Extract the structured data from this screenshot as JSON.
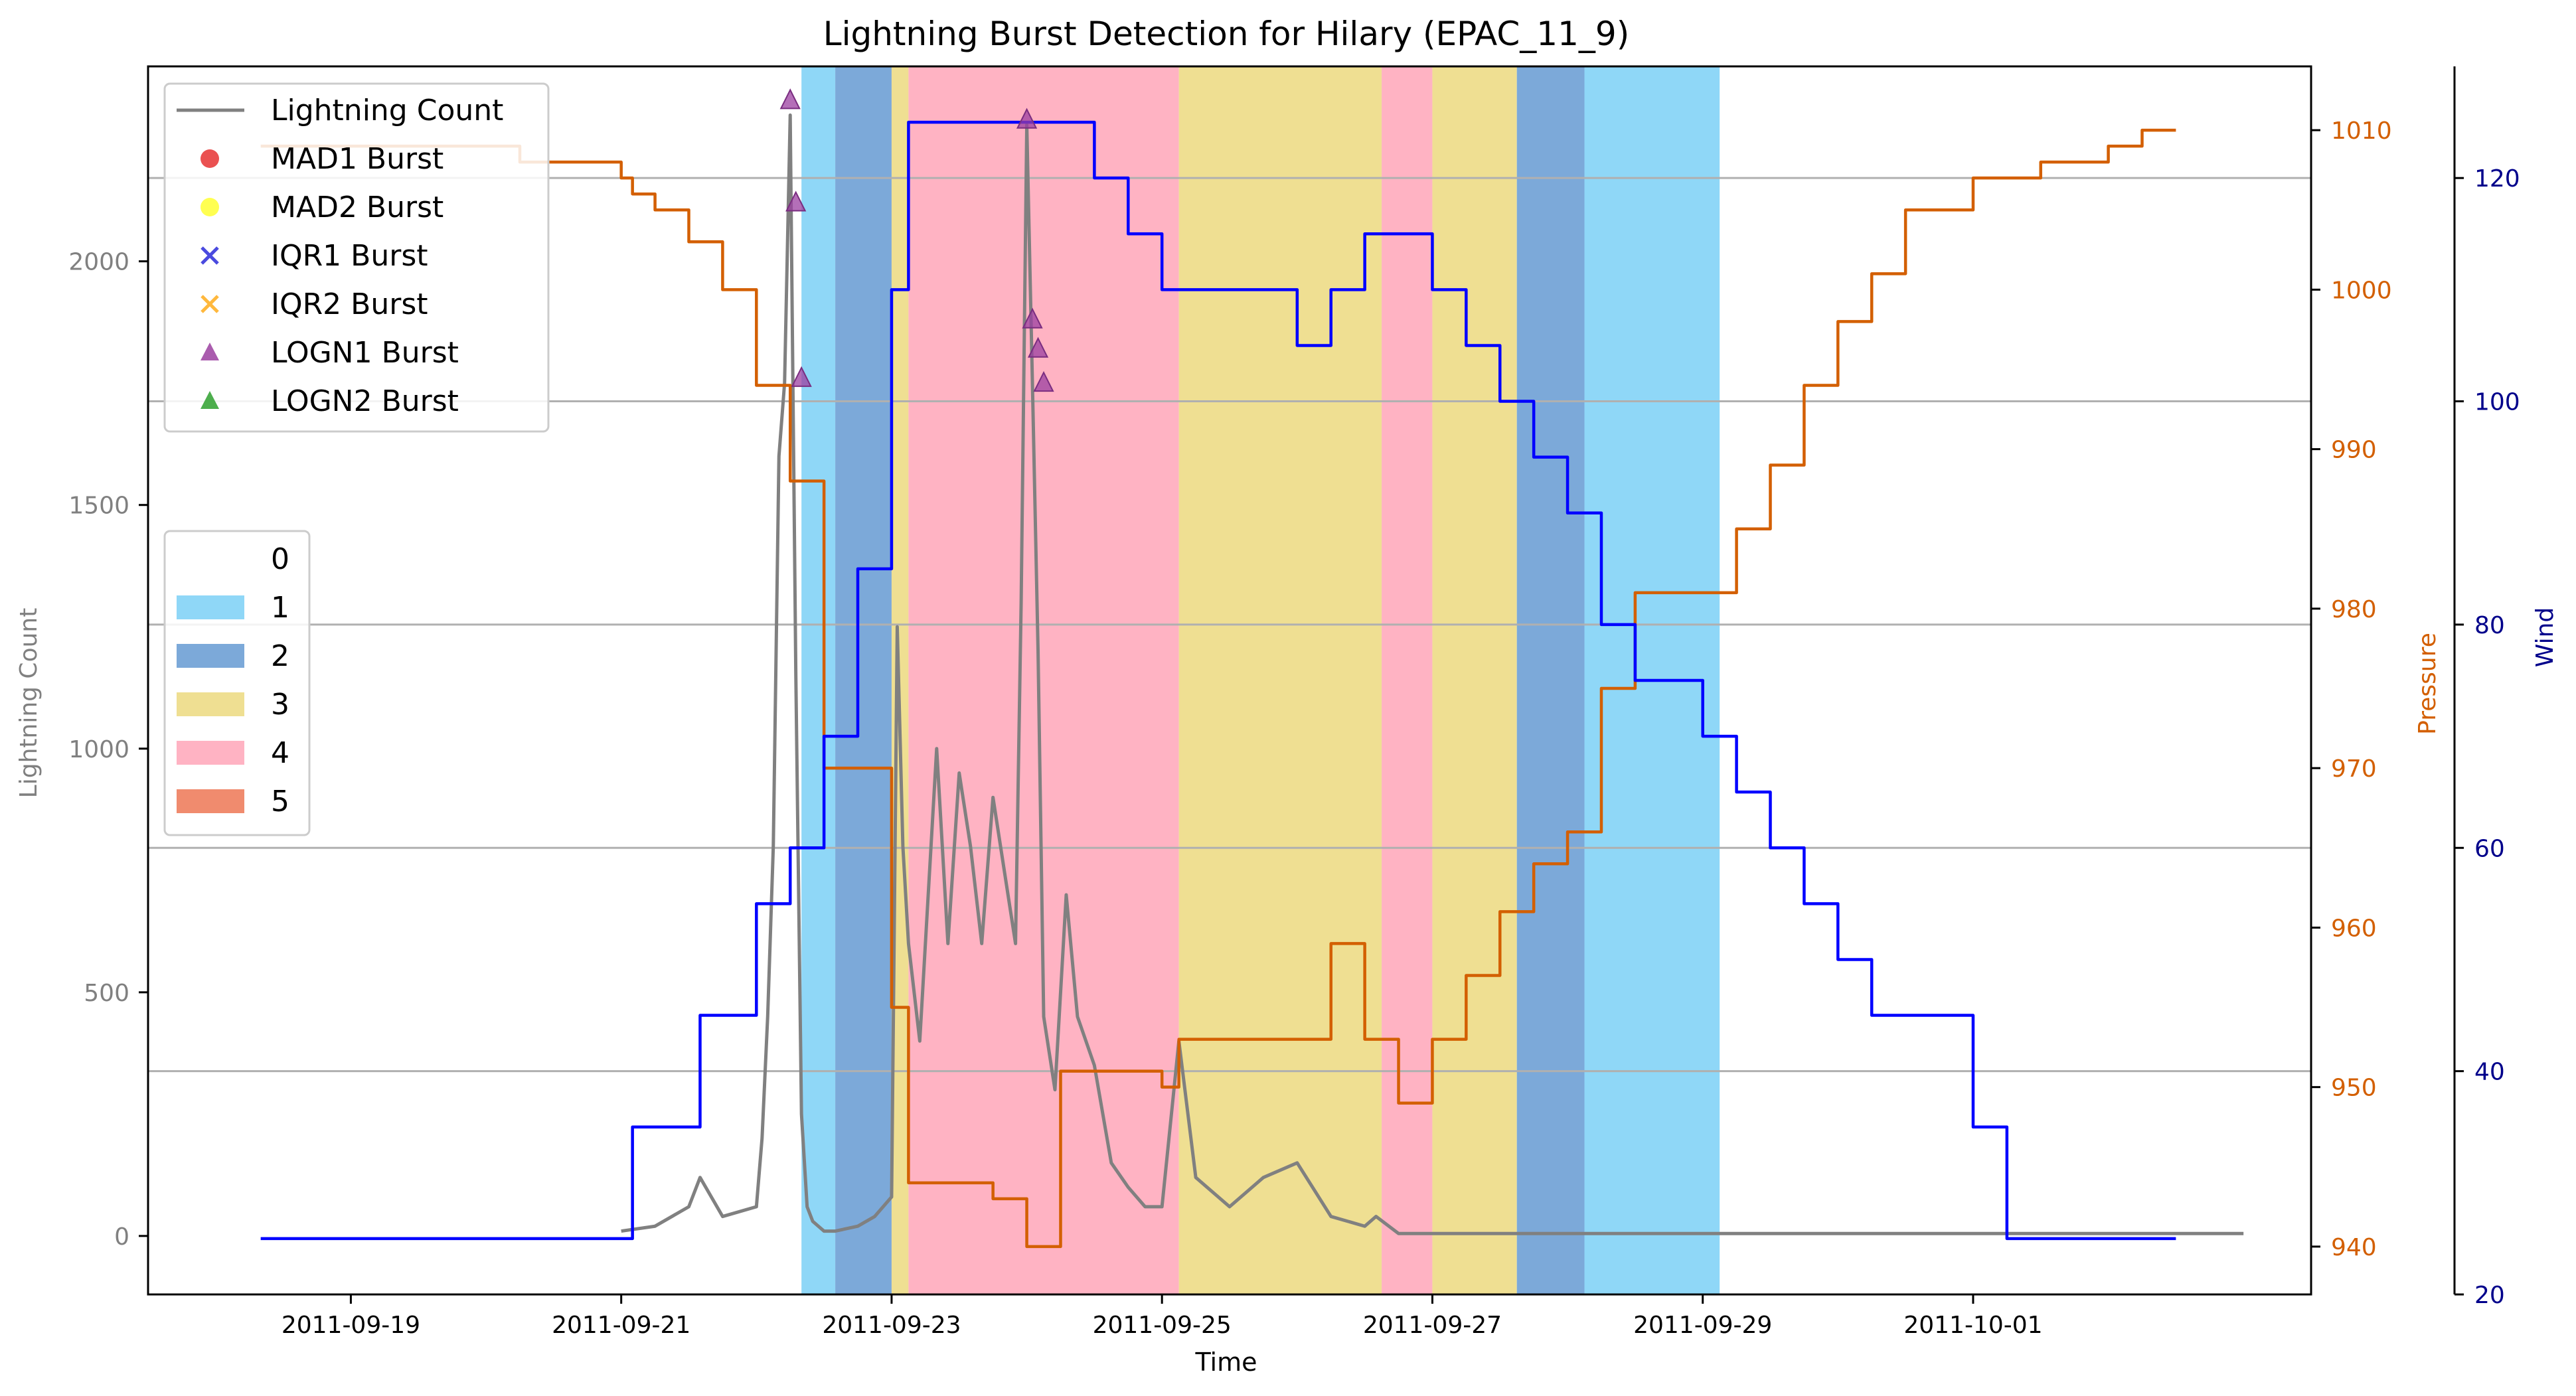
{
  "chart_data": {
    "type": "line",
    "title": "Lightning Burst Detection for Hilary (EPAC_11_9)",
    "xlabel": "Time",
    "ylabel_left": "Lightning Count",
    "ylabel_pressure": "Pressure",
    "ylabel_wind": "Wind",
    "x_range": [
      "2011-09-17T12:00",
      "2011-10-03T12:00"
    ],
    "x_ticks": [
      "2011-09-19",
      "2011-09-21",
      "2011-09-23",
      "2011-09-25",
      "2011-09-27",
      "2011-09-29",
      "2011-10-01"
    ],
    "ylim_left": [
      -120,
      2400
    ],
    "yticks_left": [
      0,
      500,
      1000,
      1500,
      2000
    ],
    "ylim_pressure": [
      937,
      1014
    ],
    "yticks_pressure": [
      940,
      950,
      960,
      970,
      980,
      990,
      1000,
      1010
    ],
    "ylim_wind": [
      20,
      130
    ],
    "yticks_wind": [
      20,
      40,
      60,
      80,
      100,
      120
    ],
    "grid": "horizontal lines at wind ticks",
    "colors": {
      "lightning": "#808080",
      "pressure": "#d35f00",
      "wind": "#0000ff",
      "left_axis": "#808080",
      "pressure_axis": "#d35f00",
      "wind_axis": "#00008b",
      "category_1": "#8fd7f7",
      "category_2": "#7ca9d9",
      "category_3": "#efdf92",
      "category_4": "#ffb3c3",
      "category_5": "#f08b6e",
      "logn1_marker": "#9b3fa0"
    },
    "category_bands": [
      {
        "category": 1,
        "start": "2011-09-22T08:00",
        "end": "2011-09-22T14:00"
      },
      {
        "category": 2,
        "start": "2011-09-22T14:00",
        "end": "2011-09-23T00:00"
      },
      {
        "category": 3,
        "start": "2011-09-23T00:00",
        "end": "2011-09-23T03:00"
      },
      {
        "category": 4,
        "start": "2011-09-23T03:00",
        "end": "2011-09-25T03:00"
      },
      {
        "category": 3,
        "start": "2011-09-25T03:00",
        "end": "2011-09-26T15:00"
      },
      {
        "category": 4,
        "start": "2011-09-26T15:00",
        "end": "2011-09-27T00:00"
      },
      {
        "category": 3,
        "start": "2011-09-27T00:00",
        "end": "2011-09-27T15:00"
      },
      {
        "category": 2,
        "start": "2011-09-27T15:00",
        "end": "2011-09-28T03:00"
      },
      {
        "category": 1,
        "start": "2011-09-28T03:00",
        "end": "2011-09-29T03:00"
      }
    ],
    "series": [
      {
        "name": "Lightning Count",
        "axis": "left",
        "style": "line",
        "x": [
          "2011-09-21T00:00",
          "2011-09-21T06:00",
          "2011-09-21T12:00",
          "2011-09-21T14:00",
          "2011-09-21T18:00",
          "2011-09-22T00:00",
          "2011-09-22T01:00",
          "2011-09-22T02:00",
          "2011-09-22T03:00",
          "2011-09-22T04:00",
          "2011-09-22T05:00",
          "2011-09-22T06:00",
          "2011-09-22T07:00",
          "2011-09-22T08:00",
          "2011-09-22T09:00",
          "2011-09-22T10:00",
          "2011-09-22T11:00",
          "2011-09-22T12:00",
          "2011-09-22T14:00",
          "2011-09-22T18:00",
          "2011-09-22T21:00",
          "2011-09-23T00:00",
          "2011-09-23T01:00",
          "2011-09-23T02:00",
          "2011-09-23T03:00",
          "2011-09-23T05:00",
          "2011-09-23T08:00",
          "2011-09-23T10:00",
          "2011-09-23T12:00",
          "2011-09-23T14:00",
          "2011-09-23T16:00",
          "2011-09-23T18:00",
          "2011-09-23T20:00",
          "2011-09-23T22:00",
          "2011-09-23T23:00",
          "2011-09-24T00:00",
          "2011-09-24T01:00",
          "2011-09-24T02:00",
          "2011-09-24T03:00",
          "2011-09-24T05:00",
          "2011-09-24T07:00",
          "2011-09-24T09:00",
          "2011-09-24T12:00",
          "2011-09-24T15:00",
          "2011-09-24T18:00",
          "2011-09-24T21:00",
          "2011-09-25T00:00",
          "2011-09-25T03:00",
          "2011-09-25T06:00",
          "2011-09-25T12:00",
          "2011-09-25T18:00",
          "2011-09-26T00:00",
          "2011-09-26T06:00",
          "2011-09-26T12:00",
          "2011-09-26T14:00",
          "2011-09-26T18:00",
          "2011-09-27T00:00",
          "2011-09-30T00:00",
          "2011-10-03T00:00"
        ],
        "values": [
          10,
          20,
          60,
          120,
          40,
          60,
          200,
          450,
          800,
          1600,
          1750,
          2300,
          1150,
          250,
          60,
          30,
          20,
          10,
          10,
          20,
          40,
          80,
          1250,
          800,
          600,
          400,
          1000,
          600,
          950,
          800,
          600,
          900,
          750,
          600,
          1300,
          2280,
          1750,
          1200,
          450,
          300,
          700,
          450,
          350,
          150,
          100,
          60,
          60,
          400,
          120,
          60,
          120,
          150,
          40,
          20,
          40,
          5,
          5,
          5,
          5
        ]
      },
      {
        "name": "Pressure",
        "axis": "pressure",
        "style": "step",
        "x": [
          "2011-09-18T08:00",
          "2011-09-20T06:00",
          "2011-09-21T00:00",
          "2011-09-21T02:00",
          "2011-09-21T06:00",
          "2011-09-21T12:00",
          "2011-09-21T18:00",
          "2011-09-22T00:00",
          "2011-09-22T06:00",
          "2011-09-22T09:00",
          "2011-09-22T12:00",
          "2011-09-23T00:00",
          "2011-09-23T03:00",
          "2011-09-23T12:00",
          "2011-09-23T18:00",
          "2011-09-24T00:00",
          "2011-09-24T06:00",
          "2011-09-24T12:00",
          "2011-09-24T18:00",
          "2011-09-25T00:00",
          "2011-09-25T03:00",
          "2011-09-26T00:00",
          "2011-09-26T06:00",
          "2011-09-26T12:00",
          "2011-09-26T18:00",
          "2011-09-27T00:00",
          "2011-09-27T06:00",
          "2011-09-27T12:00",
          "2011-09-27T18:00",
          "2011-09-28T00:00",
          "2011-09-28T06:00",
          "2011-09-28T12:00",
          "2011-09-29T00:00",
          "2011-09-29T06:00",
          "2011-09-29T12:00",
          "2011-09-29T18:00",
          "2011-09-30T00:00",
          "2011-09-30T06:00",
          "2011-09-30T12:00",
          "2011-10-01T00:00",
          "2011-10-01T12:00",
          "2011-10-02T00:00",
          "2011-10-02T06:00",
          "2011-10-02T12:00"
        ],
        "values": [
          1009,
          1008,
          1007,
          1006,
          1005,
          1003,
          1000,
          994,
          988,
          988,
          970,
          955,
          944,
          944,
          943,
          940,
          951,
          951,
          951,
          950,
          953,
          953,
          959,
          953,
          949,
          953,
          957,
          961,
          964,
          966,
          975,
          981,
          981,
          985,
          989,
          994,
          998,
          1001,
          1005,
          1007,
          1008,
          1009,
          1010,
          1010
        ]
      },
      {
        "name": "Wind",
        "axis": "wind",
        "style": "step",
        "x": [
          "2011-09-18T08:00",
          "2011-09-21T02:00",
          "2011-09-21T14:00",
          "2011-09-22T00:00",
          "2011-09-22T06:00",
          "2011-09-22T12:00",
          "2011-09-22T18:00",
          "2011-09-23T00:00",
          "2011-09-23T03:00",
          "2011-09-23T12:00",
          "2011-09-24T00:00",
          "2011-09-24T12:00",
          "2011-09-24T18:00",
          "2011-09-25T00:00",
          "2011-09-25T03:00",
          "2011-09-26T00:00",
          "2011-09-26T06:00",
          "2011-09-26T12:00",
          "2011-09-27T00:00",
          "2011-09-27T06:00",
          "2011-09-27T12:00",
          "2011-09-27T18:00",
          "2011-09-28T00:00",
          "2011-09-28T06:00",
          "2011-09-28T12:00",
          "2011-09-29T00:00",
          "2011-09-29T06:00",
          "2011-09-29T12:00",
          "2011-09-29T18:00",
          "2011-09-30T00:00",
          "2011-09-30T06:00",
          "2011-10-01T00:00",
          "2011-10-01T06:00",
          "2011-10-02T00:00",
          "2011-10-02T12:00"
        ],
        "values": [
          25,
          35,
          45,
          55,
          60,
          70,
          85,
          110,
          125,
          125,
          125,
          120,
          115,
          110,
          110,
          105,
          110,
          115,
          110,
          105,
          100,
          95,
          90,
          80,
          75,
          70,
          65,
          60,
          55,
          50,
          45,
          35,
          25,
          25,
          25
        ]
      }
    ],
    "markers": [
      {
        "name": "LOGN1 Burst",
        "axis": "left",
        "x": [
          "2011-09-22T06:00",
          "2011-09-22T07:00",
          "2011-09-22T08:00",
          "2011-09-24T00:00",
          "2011-09-24T01:00",
          "2011-09-24T02:00",
          "2011-09-24T03:00"
        ],
        "values": [
          2330,
          2120,
          1760,
          2290,
          1880,
          1820,
          1750
        ]
      }
    ],
    "legend_lines": [
      {
        "label": "Lightning Count",
        "kind": "line",
        "color": "#808080"
      },
      {
        "label": "MAD1 Burst",
        "kind": "circle",
        "color": "#e63232"
      },
      {
        "label": "MAD2 Burst",
        "kind": "circle",
        "color": "#ffff32"
      },
      {
        "label": "IQR1 Burst",
        "kind": "x",
        "color": "#4a4adf"
      },
      {
        "label": "IQR2 Burst",
        "kind": "x",
        "color": "#ffb83d"
      },
      {
        "label": "LOGN1 Burst",
        "kind": "triangle",
        "color": "#9b3fa0"
      },
      {
        "label": "LOGN2 Burst",
        "kind": "triangle",
        "color": "#2ea02e"
      }
    ],
    "legend_categories": [
      {
        "label": "0",
        "color": "#ffffff"
      },
      {
        "label": "1",
        "color": "#8fd7f7"
      },
      {
        "label": "2",
        "color": "#7ca9d9"
      },
      {
        "label": "3",
        "color": "#efdf92"
      },
      {
        "label": "4",
        "color": "#ffb3c3"
      },
      {
        "label": "5",
        "color": "#f08b6e"
      }
    ],
    "legend_placement": "upper-left"
  }
}
